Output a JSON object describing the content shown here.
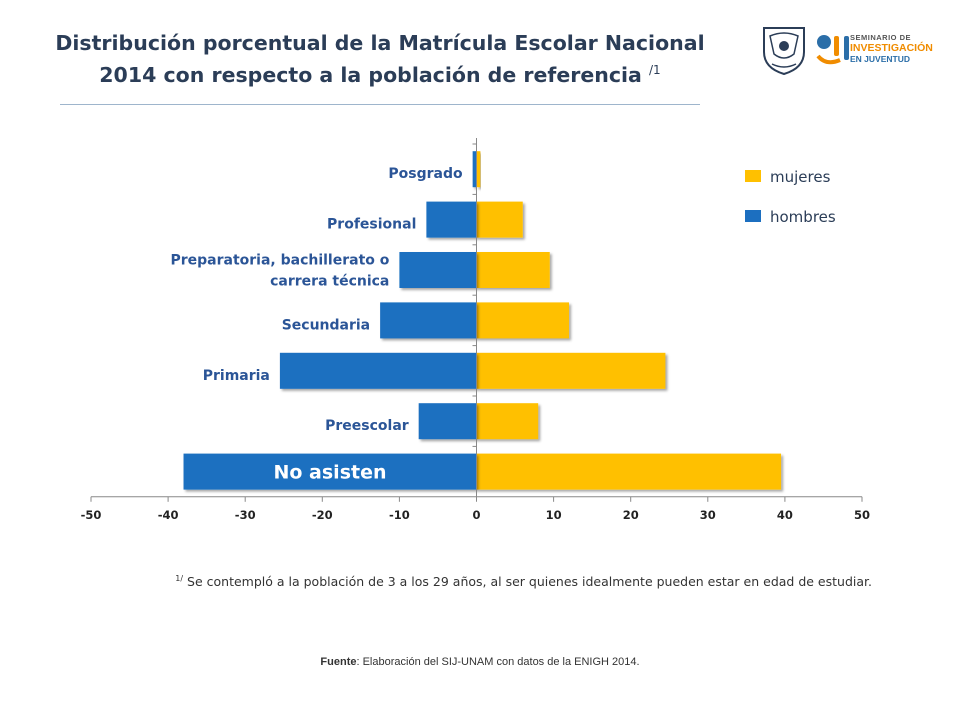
{
  "header": {
    "title_line1": "Distribución porcentual de la Matrícula Escolar Nacional",
    "title_line2": "2014 con respecto a la población de referencia",
    "title_note": "/1"
  },
  "logo": {
    "line1": "SEMINARIO DE",
    "line2": "INVESTIGACIÓN",
    "line3": "EN JUVENTUD"
  },
  "chart_data": {
    "type": "bar",
    "orientation": "horizontal",
    "categories": [
      "Posgrado",
      "Profesional",
      "Preparatoria, bachillerato o carrera técnica",
      "Secundaria",
      "Primaria",
      "Preescolar",
      "No asisten"
    ],
    "category_lines": [
      [
        "Posgrado"
      ],
      [
        "Profesional"
      ],
      [
        "Preparatoria, bachillerato o",
        "carrera técnica"
      ],
      [
        "Secundaria"
      ],
      [
        "Primaria"
      ],
      [
        "Preescolar"
      ],
      [
        "No asisten"
      ]
    ],
    "series": [
      {
        "name": "mujeres",
        "color": "#ffc000",
        "values": [
          0.5,
          6,
          9.5,
          12,
          24.5,
          8,
          39.5
        ]
      },
      {
        "name": "hombres",
        "color": "#1c6fc0",
        "values": [
          -0.5,
          -6.5,
          -10,
          -12.5,
          -25.5,
          -7.5,
          -38
        ]
      }
    ],
    "xlim": [
      -50,
      50
    ],
    "xticks": [
      "-50",
      "-40",
      "-30",
      "-20",
      "-10",
      "0",
      "10",
      "20",
      "30",
      "40",
      "50"
    ],
    "legend_position": "top-right",
    "grid": false
  },
  "footnote": {
    "mark": "1/",
    "text": "Se contempló a la población de 3 a los 29 años, al ser quienes idealmente pueden estar en edad de estudiar."
  },
  "source": {
    "label": "Fuente",
    "text": ": Elaboración del SIJ-UNAM con datos de la ENIGH 2014."
  }
}
